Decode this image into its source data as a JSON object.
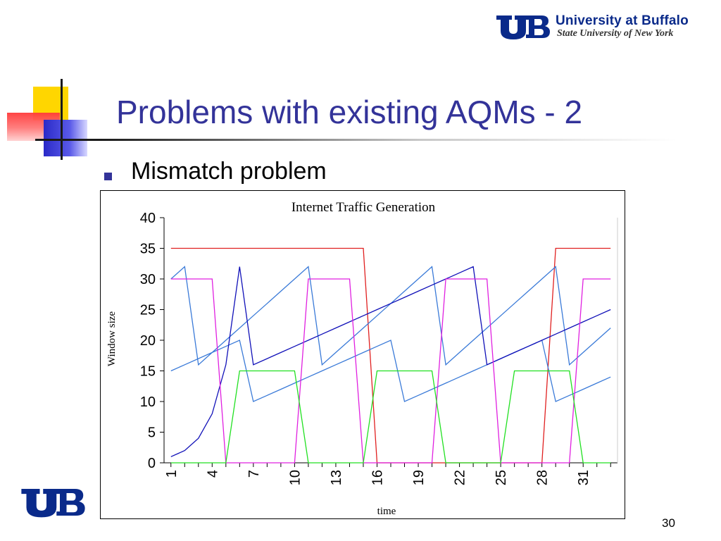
{
  "header": {
    "university": "University at Buffalo",
    "subtitle": "State University of New York"
  },
  "slide": {
    "title": "Problems with existing AQMs - 2",
    "bullet": "Mismatch problem",
    "page_number": "30"
  },
  "colors": {
    "title": "#333399",
    "red": "#e02020",
    "light_blue": "#3a7ad8",
    "dark_blue": "#1010b8",
    "magenta": "#e020e0",
    "green": "#20e020"
  },
  "chart_data": {
    "type": "line",
    "title": "Internet Traffic Generation",
    "xlabel": "time",
    "ylabel": "Window size",
    "ylim": [
      0,
      40
    ],
    "yticks": [
      0,
      5,
      10,
      15,
      20,
      25,
      30,
      35,
      40
    ],
    "x": [
      1,
      2,
      3,
      4,
      5,
      6,
      7,
      8,
      9,
      10,
      11,
      12,
      13,
      14,
      15,
      16,
      17,
      18,
      19,
      20,
      21,
      22,
      23,
      24,
      25,
      26,
      27,
      28,
      29,
      30,
      31,
      32,
      33
    ],
    "xticks": [
      1,
      4,
      7,
      10,
      13,
      16,
      19,
      22,
      25,
      28,
      31
    ],
    "grid": false,
    "series": [
      {
        "color": "#e02020",
        "values": [
          35,
          35,
          35,
          35,
          35,
          35,
          35,
          35,
          35,
          35,
          35,
          35,
          35,
          35,
          35,
          0,
          0,
          0,
          0,
          0,
          0,
          0,
          0,
          0,
          0,
          0,
          0,
          0,
          35,
          35,
          35,
          35,
          35
        ]
      },
      {
        "color": "#3a7ad8",
        "values": [
          30,
          32,
          16,
          18,
          20,
          22,
          24,
          26,
          28,
          30,
          32,
          16,
          18,
          20,
          22,
          24,
          26,
          28,
          30,
          32,
          16,
          18,
          20,
          22,
          24,
          26,
          28,
          30,
          32,
          16,
          18,
          20,
          22
        ]
      },
      {
        "color": "#3a7ad8",
        "values": [
          15,
          16,
          17,
          18,
          19,
          20,
          10,
          11,
          12,
          13,
          14,
          15,
          16,
          17,
          18,
          19,
          20,
          10,
          11,
          12,
          13,
          14,
          15,
          16,
          17,
          18,
          19,
          20,
          10,
          11,
          12,
          13,
          14
        ]
      },
      {
        "color": "#1010b8",
        "values": [
          1,
          2,
          4,
          8,
          16,
          32,
          16,
          17,
          18,
          19,
          20,
          21,
          22,
          23,
          24,
          25,
          26,
          27,
          28,
          29,
          30,
          31,
          32,
          16,
          17,
          18,
          19,
          20,
          21,
          22,
          23,
          24,
          25
        ]
      },
      {
        "color": "#e020e0",
        "values": [
          30,
          30,
          30,
          30,
          0,
          0,
          0,
          0,
          0,
          0,
          30,
          30,
          30,
          30,
          0,
          0,
          0,
          0,
          0,
          0,
          30,
          30,
          30,
          30,
          0,
          0,
          0,
          0,
          0,
          0,
          30,
          30,
          30
        ]
      },
      {
        "color": "#20e020",
        "values": [
          0,
          0,
          0,
          0,
          0,
          15,
          15,
          15,
          15,
          15,
          0,
          0,
          0,
          0,
          0,
          15,
          15,
          15,
          15,
          15,
          0,
          0,
          0,
          0,
          0,
          15,
          15,
          15,
          15,
          15,
          0,
          0,
          0
        ]
      }
    ]
  }
}
